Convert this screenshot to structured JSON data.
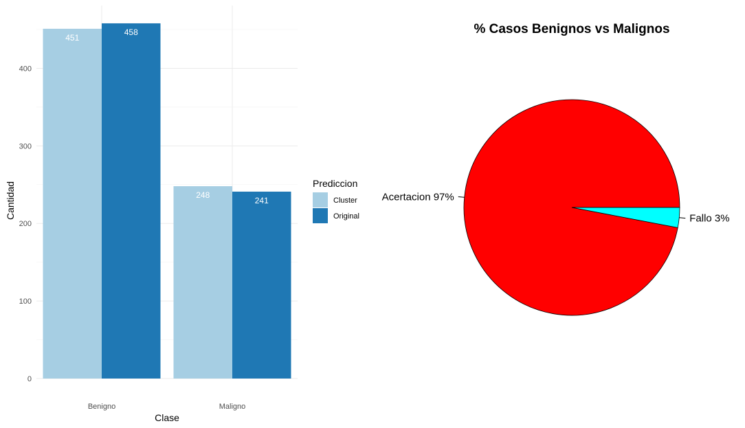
{
  "chart_data": [
    {
      "type": "bar",
      "xlabel": "Clase",
      "ylabel": "Cantidad",
      "categories": [
        "Benigno",
        "Maligno"
      ],
      "series": [
        {
          "name": "Cluster",
          "values": [
            451,
            248
          ],
          "color": "#a6cee3"
        },
        {
          "name": "Original",
          "values": [
            458,
            241
          ],
          "color": "#1f78b4"
        }
      ],
      "ylim": [
        0,
        470
      ],
      "yticks": [
        0,
        100,
        200,
        300,
        400
      ],
      "legend": {
        "title": "Prediccion",
        "position": "right"
      },
      "grid": true
    },
    {
      "type": "pie",
      "title": "% Casos Benignos vs Malignos",
      "slices": [
        {
          "label": "Acertacion 97%",
          "value": 97,
          "color": "#ff0000"
        },
        {
          "label": "Fallo 3%",
          "value": 3,
          "color": "#00ffff"
        }
      ]
    }
  ]
}
